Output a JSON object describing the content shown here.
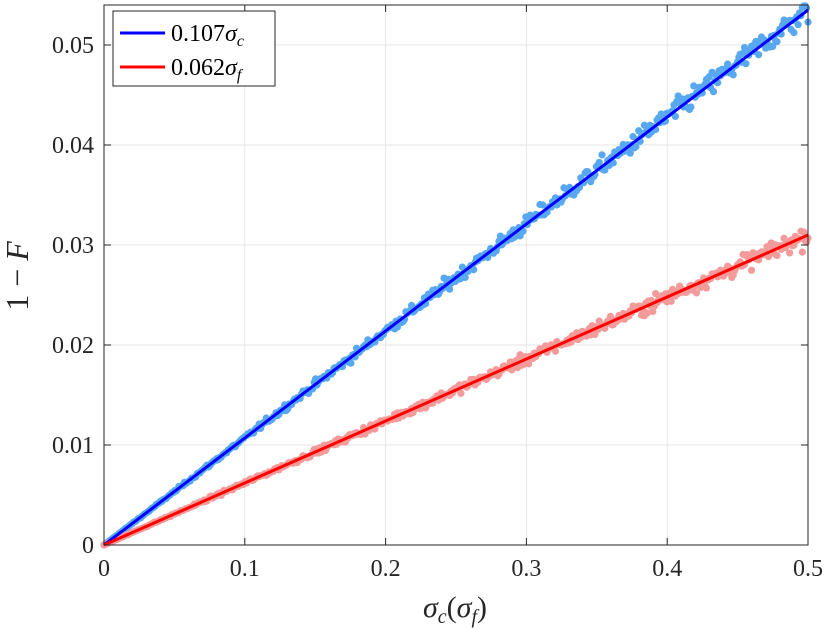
{
  "chart_data": {
    "type": "scatter",
    "xlabel": "σc(σf)",
    "xlabel_parts": {
      "main": "σ",
      "sub1": "c",
      "paren_open": "(",
      "inner": "σ",
      "sub2": "f",
      "paren_close": ")"
    },
    "ylabel": "1 − F",
    "ylabel_parts": {
      "prefix": "1 − ",
      "var": "F"
    },
    "xlim": [
      0,
      0.5
    ],
    "ylim": [
      0,
      0.054
    ],
    "x_ticks": [
      0,
      0.1,
      0.2,
      0.3,
      0.4,
      0.5
    ],
    "x_tick_labels": [
      "0",
      "0.1",
      "0.2",
      "0.3",
      "0.4",
      "0.5"
    ],
    "y_ticks": [
      0,
      0.01,
      0.02,
      0.03,
      0.04,
      0.05
    ],
    "y_tick_labels": [
      "0",
      "0.01",
      "0.02",
      "0.03",
      "0.04",
      "0.05"
    ],
    "grid": true,
    "legend_position": "top-left",
    "series": [
      {
        "name": "0.107σc",
        "name_parts": {
          "coef": "0.107",
          "sym": "σ",
          "sub": "c"
        },
        "fit_slope": 0.107,
        "line_color": "#0000ff",
        "marker_color": "#58a8f0",
        "point_count": 500,
        "noise_sd_relative": 0.012
      },
      {
        "name": "0.062σf",
        "name_parts": {
          "coef": "0.062",
          "sym": "σ",
          "sub": "f"
        },
        "fit_slope": 0.062,
        "line_color": "#ff0000",
        "marker_color": "#f39a9a",
        "point_count": 500,
        "noise_sd_relative": 0.015
      }
    ]
  }
}
